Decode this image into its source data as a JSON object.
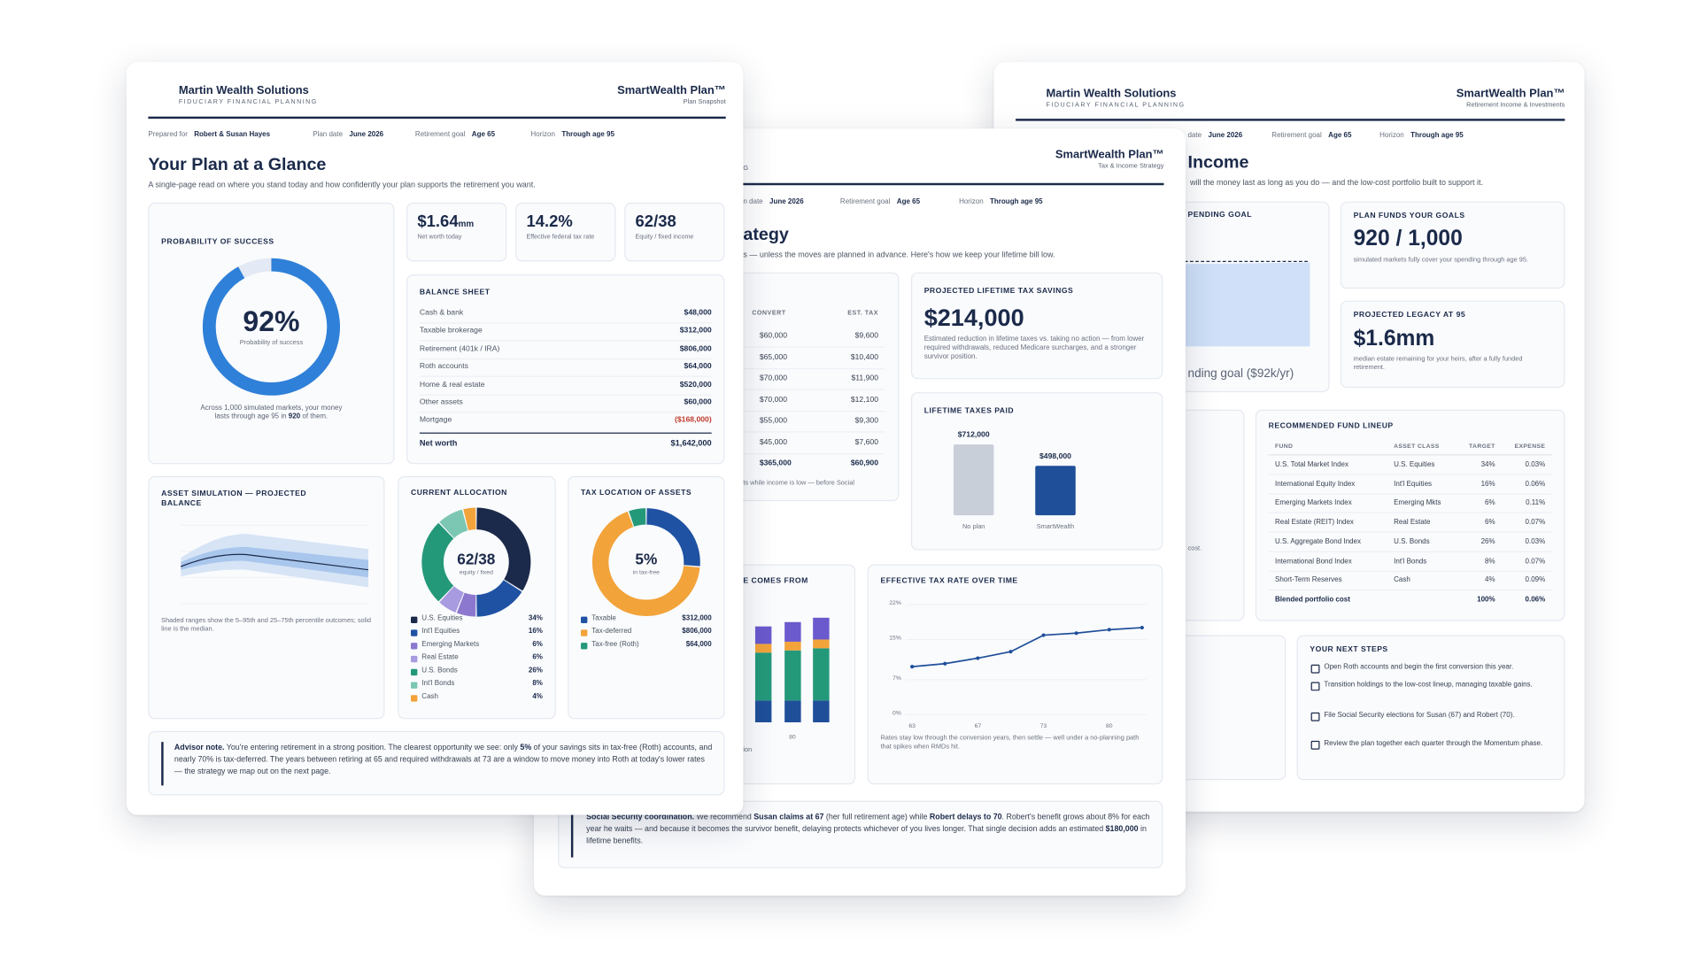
{
  "front": {
    "header": {
      "brand": "Martin Wealth Solutions",
      "tagline": "FIDUCIARY FINANCIAL PLANNING",
      "product": "SmartWealth Plan™",
      "document": "Plan Snapshot"
    },
    "meta": [
      {
        "label": "Prepared for",
        "value": "Robert & Susan Hayes"
      },
      {
        "label": "Plan date",
        "value": "June 2026"
      },
      {
        "label": "Retirement goal",
        "value": "Age 65"
      },
      {
        "label": "Horizon",
        "value": "Through age 95"
      }
    ],
    "title": "Your Plan at a Glance",
    "subtitle": "A single-page read on where you stand today and how confidently your plan supports the retirement you want.",
    "kpis": [
      {
        "value": "$1.64",
        "unit": "mm",
        "label": "Net worth today"
      },
      {
        "value": "14.2%",
        "label": "Effective federal tax rate"
      },
      {
        "value": "62/38",
        "label": "Equity / fixed income"
      }
    ],
    "success": {
      "title": "PROBABILITY OF SUCCESS",
      "value": 92,
      "value_label": "92%",
      "caption": "Probability of success",
      "note": [
        {
          "text": "Across 1,000 simulated markets, your money lasts through age 95 in "
        },
        {
          "text": "920",
          "bold": true
        },
        {
          "text": " of them."
        }
      ]
    },
    "balance_sheet": {
      "title": "BALANCE SHEET",
      "rows": [
        {
          "label": "Cash & bank",
          "value": "$48,000"
        },
        {
          "label": "Taxable brokerage",
          "value": "$312,000"
        },
        {
          "label": "Retirement (401k / IRA)",
          "value": "$806,000"
        },
        {
          "label": "Roth accounts",
          "value": "$64,000"
        },
        {
          "label": "Home & real estate",
          "value": "$520,000"
        },
        {
          "label": "Other assets",
          "value": "$60,000"
        },
        {
          "label": "Mortgage",
          "value": "($168,000)",
          "negative": true
        }
      ],
      "total": {
        "label": "Net worth",
        "value": "$1,642,000"
      }
    },
    "simulation": {
      "title": "ASSET SIMULATION — PROJECTED BALANCE",
      "note": "Shaded ranges show the 5–95th and 25–75th percentile outcomes; solid line is the median."
    },
    "allocation": {
      "type": "pie",
      "title": "CURRENT ALLOCATION",
      "center": "62/38",
      "center_caption": "equity / fixed",
      "categories": [
        "U.S. Equities",
        "Int'l Equities",
        "Emerging Markets",
        "Real Estate",
        "U.S. Bonds",
        "Int'l Bonds",
        "Cash"
      ],
      "values": [
        34,
        16,
        6,
        6,
        26,
        8,
        4
      ],
      "value_labels": [
        "34%",
        "16%",
        "6%",
        "6%",
        "26%",
        "8%",
        "4%"
      ],
      "colors": [
        "#1b2a4a",
        "#1f52a3",
        "#8c78cf",
        "#a99be0",
        "#24997a",
        "#7cc7b3",
        "#f2a33a"
      ]
    },
    "tax_location": {
      "type": "pie",
      "title": "TAX LOCATION OF ASSETS",
      "center": "5%",
      "center_caption": "in tax-free",
      "categories": [
        "Taxable",
        "Tax-deferred",
        "Tax-free (Roth)"
      ],
      "values": [
        312000,
        806000,
        64000
      ],
      "value_labels": [
        "$312,000",
        "$806,000",
        "$64,000"
      ],
      "colors": [
        "#1f52a3",
        "#f2a33a",
        "#24997a"
      ]
    },
    "advisor_note": [
      {
        "text": "Advisor note.",
        "bold": true
      },
      {
        "text": " You're entering retirement in a strong position. The clearest opportunity we see: only "
      },
      {
        "text": "5%",
        "bold": true
      },
      {
        "text": " of your savings sits in tax-free (Roth) accounts, and nearly 70% is tax-deferred. The years between retiring at 65 and required withdrawals at 73 are a window to move money into Roth at today's lower rates — the strategy we map out on the next page."
      }
    ]
  },
  "middle": {
    "header": {
      "fragment": "G",
      "product": "SmartWealth Plan™",
      "document": "Tax & Income Strategy"
    },
    "meta": [
      {
        "label": "n date",
        "value": "June 2026"
      },
      {
        "label": "Retirement goal",
        "value": "Age 65"
      },
      {
        "label": "Horizon",
        "value": "Through age 95"
      }
    ],
    "title": "ategy",
    "subtitle": "s — unless the moves are planned in advance. Here's how we keep your lifetime bill low.",
    "conversions": {
      "headers": [
        "CONVERT",
        "EST. TAX"
      ],
      "rows": [
        [
          "$60,000",
          "$9,600"
        ],
        [
          "$65,000",
          "$10,400"
        ],
        [
          "$70,000",
          "$11,900"
        ],
        [
          "$70,000",
          "$12,100"
        ],
        [
          "$55,000",
          "$9,300"
        ],
        [
          "$45,000",
          "$7,600"
        ]
      ],
      "total": [
        "$365,000",
        "$60,900"
      ],
      "note": "ts while income is low — before Social"
    },
    "savings": {
      "title": "PROJECTED LIFETIME TAX SAVINGS",
      "value": "$214,000",
      "text": "Estimated reduction in lifetime taxes vs. taking no action — from lower required withdrawals, reduced Medicare surcharges, and a stronger survivor position."
    },
    "taxes_paid": {
      "type": "bar",
      "title": "LIFETIME TAXES PAID",
      "categories": [
        "No plan",
        "SmartWealth"
      ],
      "values": [
        712000,
        498000
      ],
      "value_labels": [
        "$712,000",
        "$498,000"
      ],
      "colors": [
        "#c9cfd9",
        "#1f4f99"
      ]
    },
    "sources": {
      "title": "E COMES FROM",
      "x_label": "80",
      "note": "ion"
    },
    "tax_rate": {
      "type": "line",
      "title": "EFFECTIVE TAX RATE OVER TIME",
      "categories": [
        "63",
        null,
        "67",
        null,
        "73",
        null,
        "80",
        null
      ],
      "values": [
        9.6,
        10.2,
        11.3,
        12.6,
        15.9,
        16.3,
        17,
        17.4
      ],
      "ylim": [
        0,
        22
      ],
      "yticks": [
        {
          "value": 0,
          "label": "0%"
        },
        {
          "value": 7,
          "label": "7%"
        },
        {
          "value": 15,
          "label": "15%"
        },
        {
          "value": 22,
          "label": "22%"
        }
      ],
      "color": "#1f4f99",
      "grid": true,
      "note": "Rates stay low through the conversion years, then settle — well under a no-planning path that spikes when RMDs hit."
    },
    "ss_note": [
      {
        "text": "Social Security coordination.",
        "bold": true
      },
      {
        "text": " We recommend "
      },
      {
        "text": "Susan claims at 67",
        "bold": true
      },
      {
        "text": " (her full retirement age) while "
      },
      {
        "text": "Robert delays to 70",
        "bold": true
      },
      {
        "text": ". Robert's benefit grows about 8% for each year he waits — and because it becomes the survivor benefit, delaying protects whichever of you lives longer. That single decision adds an estimated "
      },
      {
        "text": "$180,000",
        "bold": true
      },
      {
        "text": " in lifetime benefits."
      }
    ]
  },
  "back": {
    "header": {
      "brand": "Martin Wealth Solutions",
      "tagline": "FIDUCIARY FINANCIAL PLANNING",
      "product": "SmartWealth Plan™",
      "document": "Retirement Income & Investments"
    },
    "meta": [
      {
        "label": "date",
        "value": "June 2026"
      },
      {
        "label": "Retirement goal",
        "value": "Age 65"
      },
      {
        "label": "Horizon",
        "value": "Through age 95"
      }
    ],
    "title": "Income",
    "subtitle": "will the money last as long as you do — and the low-cost portfolio built to support it.",
    "spending": {
      "title": "PENDING GOAL",
      "caption": "nding goal ($92k/yr)"
    },
    "funds_goals": {
      "title": "PLAN FUNDS YOUR GOALS",
      "value": "920 / 1,000",
      "text": "simulated markets fully cover your spending through age 95."
    },
    "legacy": {
      "title": "PROJECTED LEGACY AT 95",
      "value": "$1.6mm",
      "text": "median estate remaining for your heirs, after a fully funded retirement."
    },
    "cost_fragment": "cost.",
    "lineup": {
      "title": "RECOMMENDED FUND LINEUP",
      "headers": [
        "FUND",
        "ASSET CLASS",
        "TARGET",
        "EXPENSE"
      ],
      "rows": [
        [
          "U.S. Total Market Index",
          "U.S. Equities",
          "34%",
          "0.03%"
        ],
        [
          "International Equity Index",
          "Int'l Equities",
          "16%",
          "0.06%"
        ],
        [
          "Emerging Markets Index",
          "Emerging Mkts",
          "6%",
          "0.11%"
        ],
        [
          "Real Estate (REIT) Index",
          "Real Estate",
          "6%",
          "0.07%"
        ],
        [
          "U.S. Aggregate Bond Index",
          "U.S. Bonds",
          "26%",
          "0.03%"
        ],
        [
          "International Bond Index",
          "Int'l Bonds",
          "8%",
          "0.07%"
        ],
        [
          "Short-Term Reserves",
          "Cash",
          "4%",
          "0.09%"
        ]
      ],
      "total": {
        "name": "Blended portfolio cost",
        "target": "100%",
        "expense": "0.06%"
      }
    },
    "next_steps": {
      "title": "YOUR NEXT STEPS",
      "items": [
        "Open Roth accounts and begin the first conversion this year.",
        "Transition holdings to the low-cost lineup, managing taxable gains.",
        "File Social Security elections for Susan (67) and Robert (70).",
        "Review the plan together each quarter through the Momentum phase."
      ]
    }
  }
}
